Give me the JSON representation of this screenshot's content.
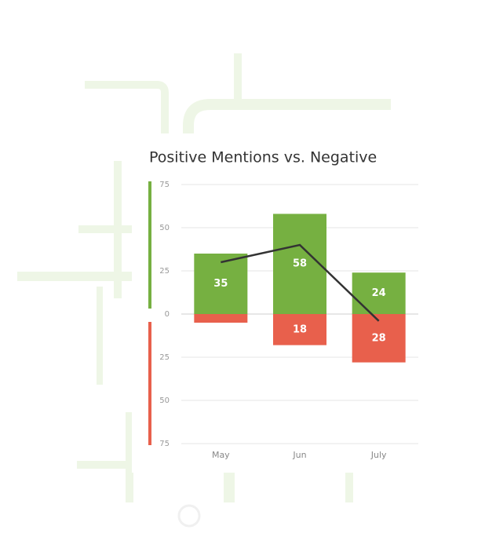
{
  "chart_data": {
    "type": "bar",
    "title": "Positive Mentions vs. Negative",
    "categories": [
      "May",
      "Jun",
      "July"
    ],
    "series": [
      {
        "color": "#76b041",
        "values": [
          35,
          58,
          24
        ],
        "value_labels": [
          "35",
          "58",
          "24"
        ]
      },
      {
        "color": "#e8604c",
        "values": [
          -5,
          -18,
          -28
        ],
        "value_labels": [
          null,
          "18",
          "28"
        ]
      },
      {
        "type": "line",
        "color": "#333333",
        "values": [
          30,
          40,
          -4
        ]
      }
    ],
    "ylim": [
      -75,
      75
    ],
    "yticks": [
      {
        "value": -75,
        "label": "75"
      },
      {
        "value": -50,
        "label": "50"
      },
      {
        "value": -25,
        "label": "25"
      },
      0,
      25,
      50,
      75
    ],
    "grid": true
  }
}
